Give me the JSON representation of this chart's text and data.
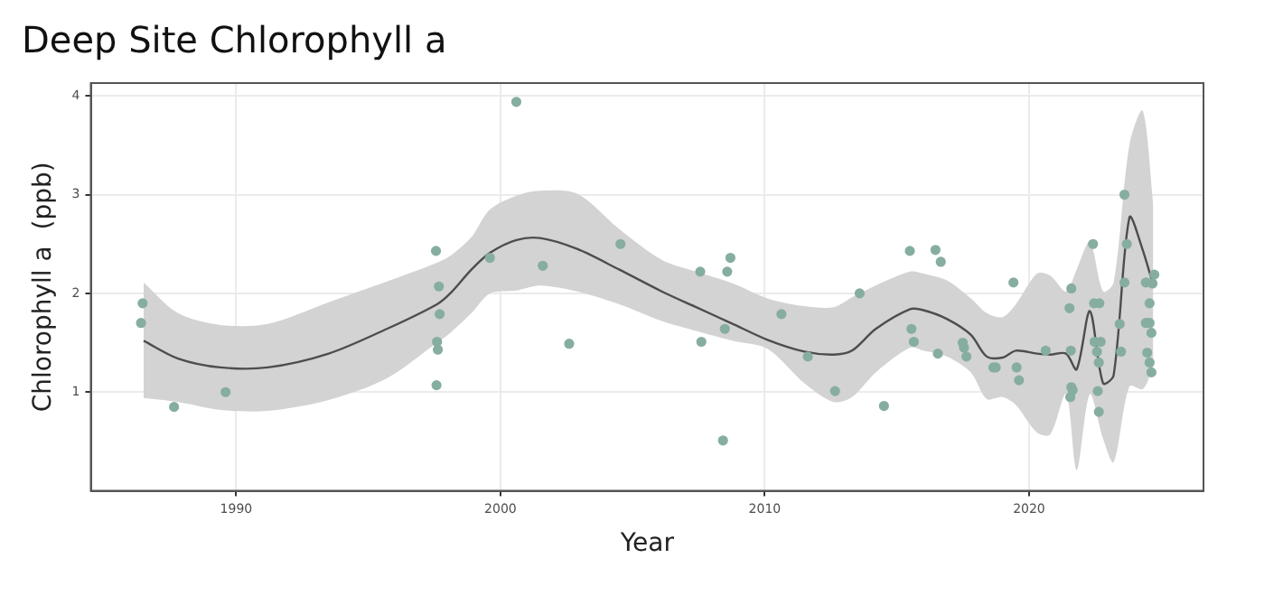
{
  "chart_data": {
    "type": "scatter",
    "title": "Deep Site Chlorophyll a",
    "xlabel": "Year",
    "ylabel": "Chlorophyll a  (ppb)",
    "xlim": [
      1984.5,
      2026.6
    ],
    "ylim": [
      0,
      4.13
    ],
    "xticks": [
      1990,
      2000,
      2010,
      2020
    ],
    "yticks": [
      1,
      2,
      3,
      4
    ],
    "grid": true,
    "legend": false,
    "series": [
      {
        "type": "line",
        "color": "#4d4d4d",
        "x": [
          1986.5,
          1987.8,
          1989.4,
          1991.2,
          1993.5,
          1995.7,
          1997.6,
          1998.1,
          1998.9,
          1999.6,
          2000.6,
          2001.5,
          2002.9,
          2004.5,
          2006.1,
          2007.4,
          2008.8,
          2010.1,
          2011.5,
          2012.6,
          2013.3,
          2014.2,
          2015.5,
          2016.0,
          2016.9,
          2017.8,
          2018.4,
          2019.0,
          2019.5,
          2020.3,
          2020.8,
          2021.4,
          2021.8,
          2022.3,
          2022.8,
          2023.2,
          2023.8,
          2024.3,
          2024.7
        ],
        "values": [
          1.52,
          1.34,
          1.25,
          1.25,
          1.39,
          1.64,
          1.89,
          2.0,
          2.24,
          2.41,
          2.54,
          2.56,
          2.45,
          2.24,
          2.02,
          1.86,
          1.69,
          1.53,
          1.41,
          1.38,
          1.42,
          1.64,
          1.84,
          1.83,
          1.74,
          1.58,
          1.36,
          1.35,
          1.42,
          1.39,
          1.38,
          1.39,
          1.23,
          1.82,
          1.09,
          1.17,
          2.77,
          2.44,
          2.08
        ],
        "lower": [
          0.94,
          0.9,
          0.82,
          0.81,
          0.92,
          1.14,
          1.5,
          1.6,
          1.8,
          2.0,
          2.03,
          2.08,
          2.02,
          1.89,
          1.72,
          1.62,
          1.52,
          1.44,
          1.09,
          0.9,
          0.95,
          1.2,
          1.45,
          1.42,
          1.36,
          1.2,
          0.93,
          0.95,
          0.87,
          0.59,
          0.57,
          0.98,
          0.21,
          0.98,
          0.53,
          0.29,
          1.06,
          1.03,
          1.25
        ],
        "upper": [
          2.11,
          1.8,
          1.68,
          1.69,
          1.91,
          2.12,
          2.31,
          2.38,
          2.57,
          2.85,
          2.99,
          3.04,
          3.01,
          2.65,
          2.34,
          2.22,
          2.1,
          1.95,
          1.87,
          1.86,
          1.96,
          2.08,
          2.22,
          2.2,
          2.13,
          1.95,
          1.8,
          1.76,
          1.89,
          2.2,
          2.18,
          2.02,
          2.24,
          2.52,
          2.02,
          2.11,
          3.51,
          3.85,
          2.9
        ]
      },
      {
        "type": "scatter",
        "color": "#86ae9f",
        "marker": "circle",
        "x": [
          1986.46,
          1986.4,
          1987.65,
          1989.6,
          1997.56,
          1997.67,
          1997.7,
          1997.6,
          1997.63,
          1997.58,
          1999.6,
          2000.6,
          2001.6,
          2002.6,
          2004.54,
          2007.56,
          2007.6,
          2008.58,
          2008.7,
          2008.49,
          2008.42,
          2010.63,
          2011.63,
          2012.66,
          2013.59,
          2014.51,
          2015.49,
          2015.55,
          2015.64,
          2016.46,
          2016.66,
          2016.55,
          2017.49,
          2017.54,
          2017.63,
          2018.65,
          2018.74,
          2019.41,
          2019.53,
          2019.62,
          2020.63,
          2021.6,
          2021.53,
          2021.58,
          2021.6,
          2021.65,
          2021.56,
          2022.42,
          2022.46,
          2022.66,
          2022.48,
          2022.71,
          2022.57,
          2022.64,
          2022.6,
          2022.64,
          2023.61,
          2023.7,
          2023.61,
          2023.43,
          2023.48,
          2024.42,
          2024.74,
          2024.56,
          2024.42,
          2024.56,
          2024.63,
          2024.47,
          2024.56,
          2024.63,
          2024.67
        ],
        "values": [
          1.9,
          1.7,
          0.85,
          1.0,
          2.43,
          2.07,
          1.79,
          1.51,
          1.43,
          1.07,
          2.36,
          3.94,
          2.28,
          1.49,
          2.5,
          2.22,
          1.51,
          2.22,
          2.36,
          1.64,
          0.51,
          1.79,
          1.36,
          1.01,
          2.0,
          0.86,
          2.43,
          1.64,
          1.51,
          2.44,
          2.32,
          1.39,
          1.5,
          1.45,
          1.36,
          1.25,
          1.25,
          2.11,
          1.25,
          1.12,
          1.42,
          2.05,
          1.85,
          1.42,
          1.05,
          1.02,
          0.95,
          2.5,
          1.9,
          1.9,
          1.51,
          1.51,
          1.41,
          1.3,
          1.01,
          0.8,
          3.0,
          2.5,
          2.11,
          1.69,
          1.41,
          2.11,
          2.19,
          1.9,
          1.7,
          1.7,
          1.6,
          1.4,
          1.3,
          1.2,
          2.1
        ]
      }
    ]
  }
}
